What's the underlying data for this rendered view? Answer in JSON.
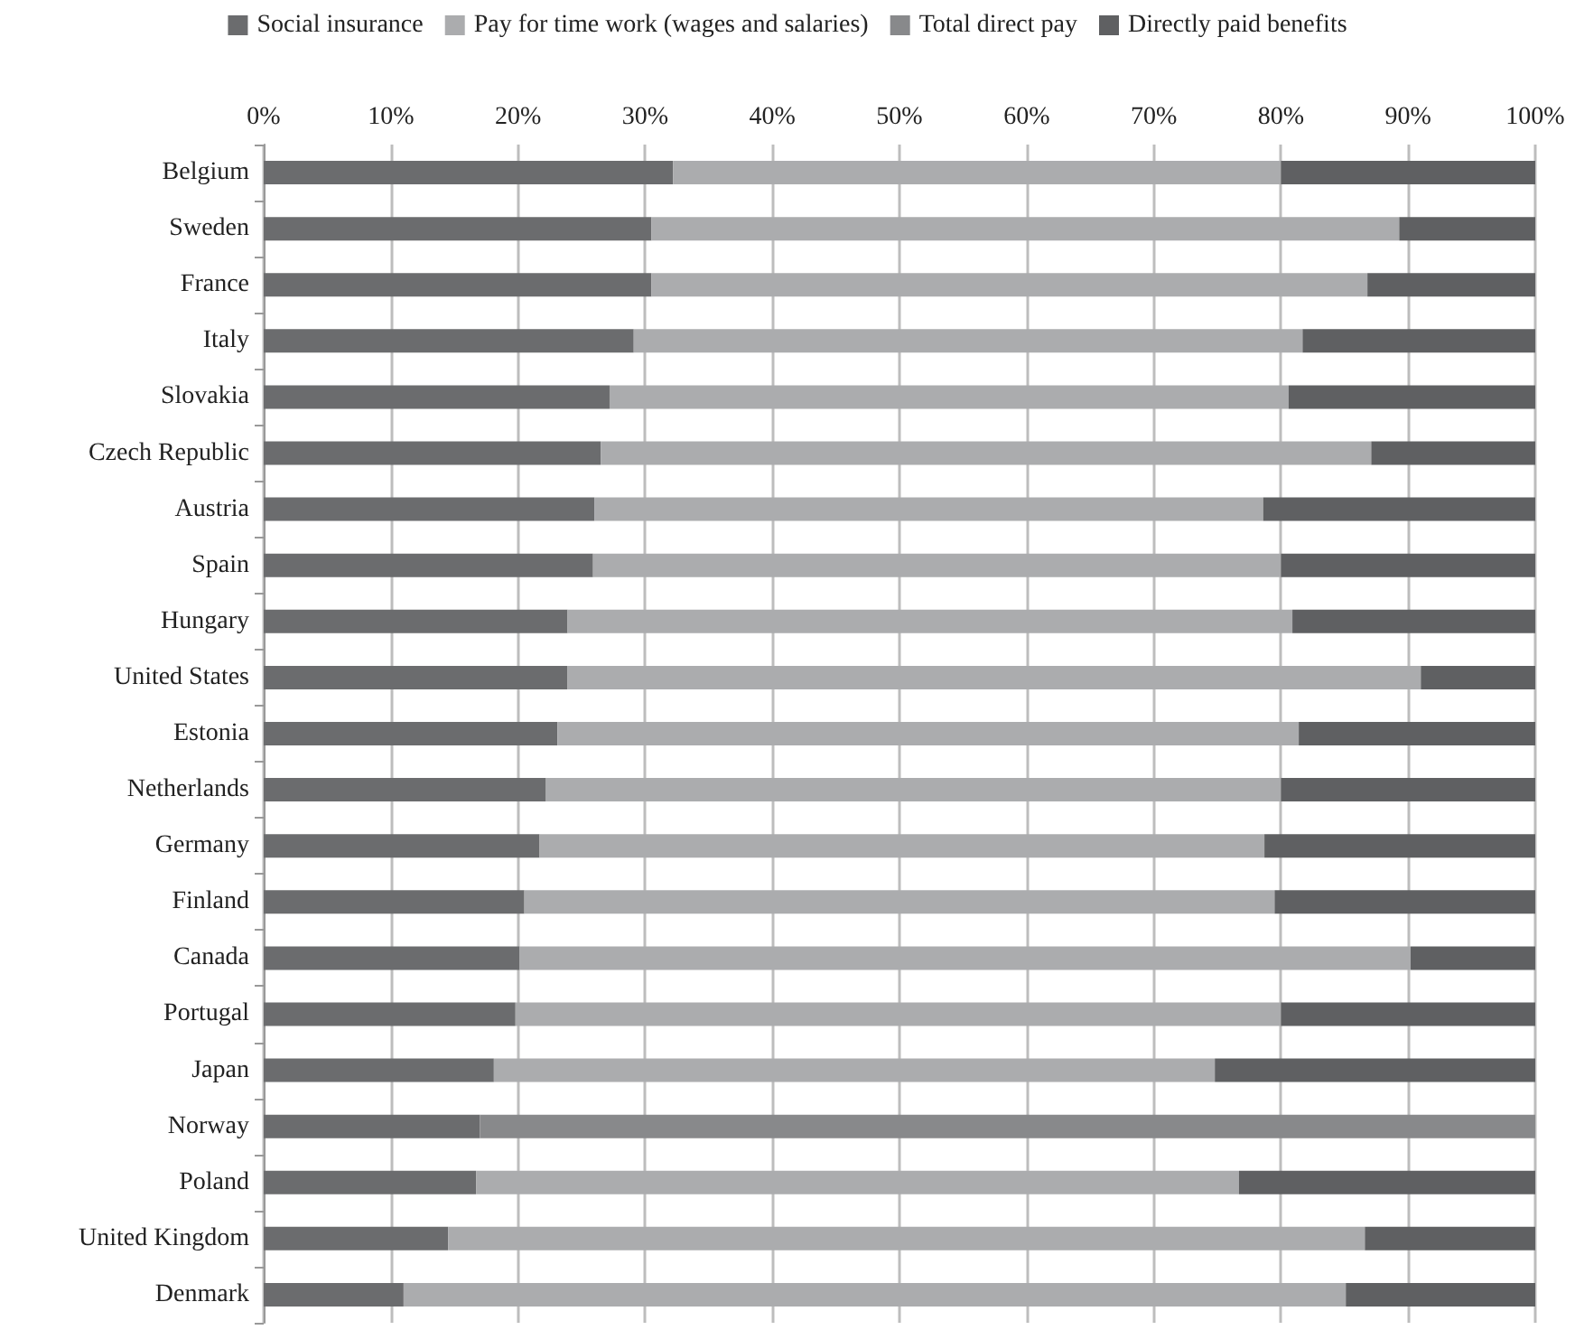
{
  "chart_data": {
    "type": "bar",
    "orientation": "horizontal",
    "stacked": true,
    "legend": "top",
    "grid": "x",
    "categories": [
      "Belgium",
      "Sweden",
      "France",
      "Italy",
      "Slovakia",
      "Czech Republic",
      "Austria",
      "Spain",
      "Hungary",
      "United States",
      "Estonia",
      "Netherlands",
      "Germany",
      "Finland",
      "Canada",
      "Portugal",
      "Japan",
      "Norway",
      "Poland",
      "United Kingdom",
      "Denmark"
    ],
    "xlim": [
      0,
      100
    ],
    "xticks": [
      {
        "value": 0,
        "label": "0%"
      },
      {
        "value": 10,
        "label": "10%"
      },
      {
        "value": 20,
        "label": "20%"
      },
      {
        "value": 30,
        "label": "30%"
      },
      {
        "value": 40,
        "label": "40%"
      },
      {
        "value": 50,
        "label": "50%"
      },
      {
        "value": 60,
        "label": "60%"
      },
      {
        "value": 70,
        "label": "70%"
      },
      {
        "value": 80,
        "label": "80%"
      },
      {
        "value": 90,
        "label": "90%"
      },
      {
        "value": 100,
        "label": "100%"
      }
    ],
    "series": [
      {
        "name": "Social insurance",
        "color": "#6b6c6e",
        "values": [
          32.2,
          30.5,
          30.5,
          29.1,
          27.2,
          26.5,
          26.0,
          25.9,
          23.9,
          23.9,
          23.1,
          22.2,
          21.7,
          20.5,
          20.1,
          19.8,
          18.1,
          17.0,
          16.7,
          14.5,
          11.0
        ]
      },
      {
        "name": "Pay for time work (wages and salaries)",
        "color": "#abacae",
        "values": [
          47.8,
          58.8,
          56.3,
          52.6,
          53.4,
          60.6,
          52.6,
          54.1,
          57.0,
          67.1,
          58.3,
          57.8,
          57.0,
          59.0,
          70.1,
          60.2,
          56.7,
          null,
          60.0,
          72.1,
          74.1
        ]
      },
      {
        "name": "Total direct pay",
        "color": "#88898b",
        "values": [
          null,
          null,
          null,
          null,
          null,
          null,
          null,
          null,
          null,
          null,
          null,
          null,
          null,
          null,
          null,
          null,
          null,
          83.0,
          null,
          null,
          null
        ]
      },
      {
        "name": "Directly paid benefits",
        "color": "#5f6062",
        "values": [
          20.0,
          10.7,
          13.2,
          18.3,
          19.4,
          12.9,
          21.4,
          20.0,
          19.1,
          9.0,
          18.6,
          20.0,
          21.3,
          20.5,
          9.8,
          20.0,
          25.2,
          null,
          23.3,
          13.4,
          14.9
        ]
      }
    ]
  }
}
